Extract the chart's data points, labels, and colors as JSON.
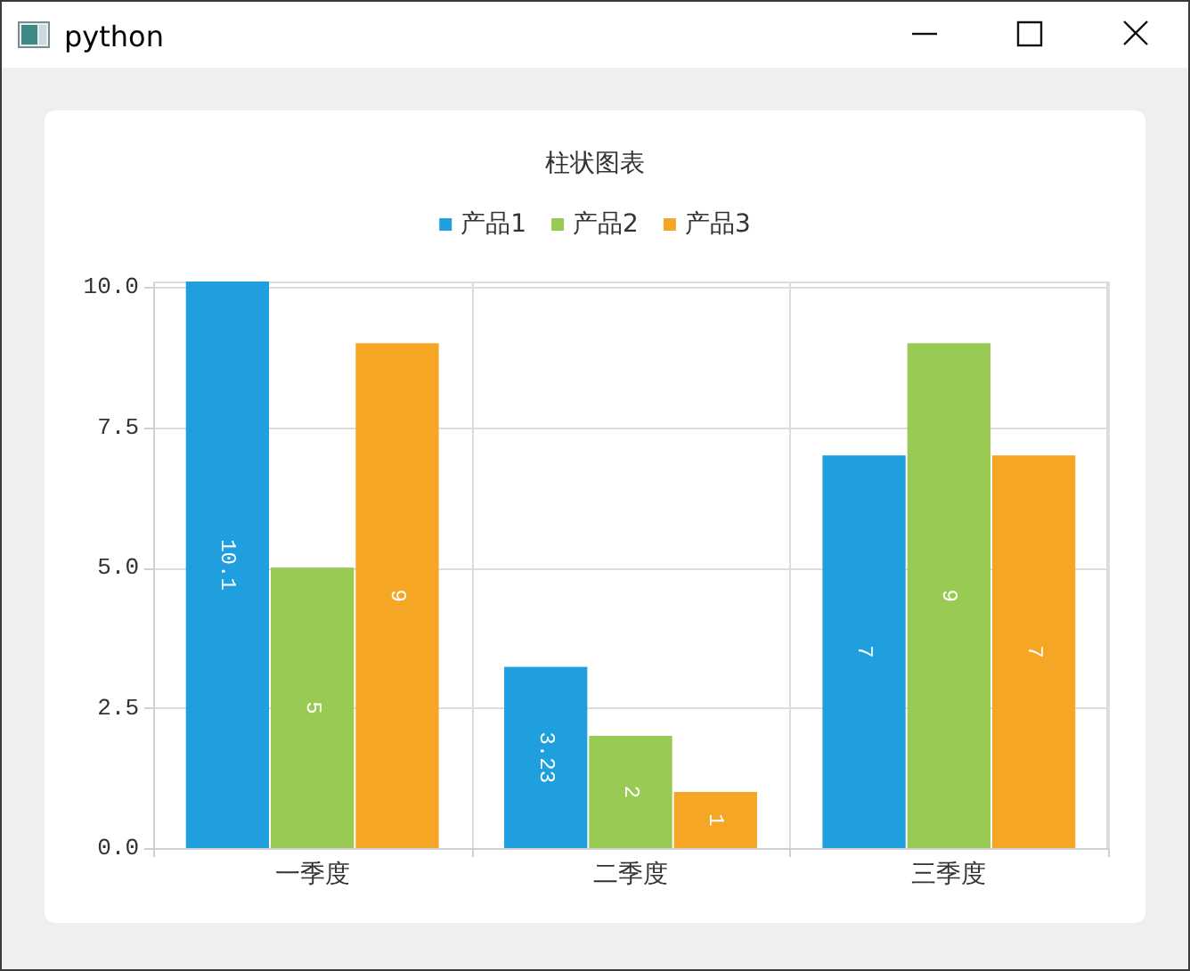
{
  "chart_data": {
    "type": "bar",
    "title": "柱状图表",
    "annotations": [
      "python"
    ],
    "categories": [
      "一季度",
      "二季度",
      "三季度"
    ],
    "series": [
      {
        "name": "产品1",
        "color": "#209fdf",
        "values": [
          10.1,
          3.23,
          7
        ]
      },
      {
        "name": "产品2",
        "color": "#99ca53",
        "values": [
          5,
          2,
          9
        ]
      },
      {
        "name": "产品3",
        "color": "#f6a625",
        "values": [
          9,
          1,
          7
        ]
      }
    ],
    "ylim": [
      0,
      10.1
    ],
    "yticks": [
      {
        "value": 0,
        "label": "0.0"
      },
      2.5,
      {
        "value": 5,
        "label": "5.0"
      },
      7.5,
      {
        "value": 10,
        "label": "10.0"
      }
    ],
    "grid": true,
    "legend": "top",
    "data_labels": true
  }
}
